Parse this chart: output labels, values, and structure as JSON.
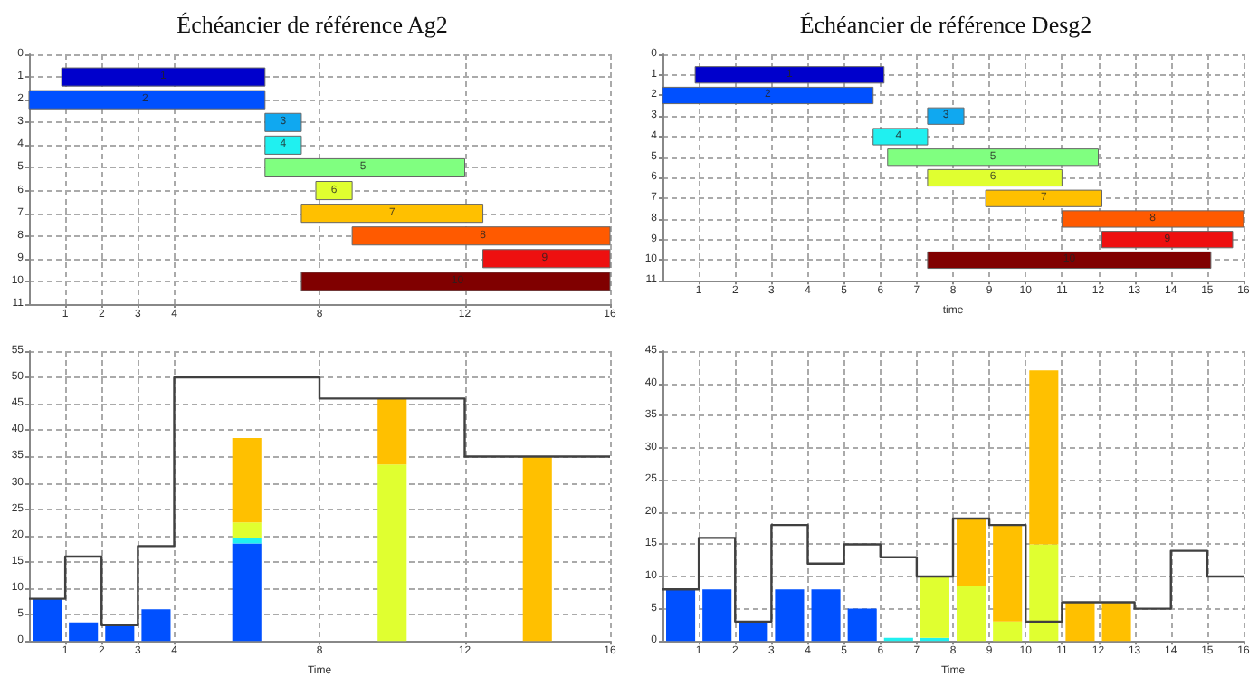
{
  "chart_data": [
    {
      "type": "bar",
      "orientation": "horizontal",
      "title": "Échéancier de référence Ag2",
      "categories": [
        "0",
        "1",
        "2",
        "3",
        "4",
        "5",
        "6",
        "7",
        "8",
        "9",
        "10",
        "11"
      ],
      "values": [
        null,
        5.6,
        6.5,
        1,
        1,
        5.5,
        1,
        5,
        7.1,
        3.5,
        8.5,
        null
      ],
      "base": [
        null,
        0.9,
        0,
        6.5,
        6.5,
        6.5,
        7.9,
        7.5,
        8.9,
        12.5,
        7.5,
        null
      ],
      "colors": [
        null,
        "#0000cc",
        "#0050ff",
        "#10a8f0",
        "#20f0f0",
        "#80ff80",
        "#e0ff30",
        "#ffc000",
        "#ff5a00",
        "#ee1010",
        "#800000",
        null
      ],
      "annotations": [
        {
          "text": "1",
          "x": 3.7,
          "y": "1"
        },
        {
          "text": "2",
          "x": 3.2,
          "y": "2"
        },
        {
          "text": "3",
          "x": 7,
          "y": "3"
        },
        {
          "text": "4",
          "x": 7,
          "y": "4"
        },
        {
          "text": "5",
          "x": 9.2,
          "y": "5"
        },
        {
          "text": "6",
          "x": 8.4,
          "y": "6"
        },
        {
          "text": "7",
          "x": 10,
          "y": "7"
        },
        {
          "text": "8",
          "x": 12.5,
          "y": "8"
        },
        {
          "text": "9",
          "x": 14.2,
          "y": "9"
        },
        {
          "text": "10",
          "x": 11.8,
          "y": "10"
        }
      ],
      "xlim": [
        0,
        16
      ],
      "xticks": [
        1,
        2,
        3,
        4,
        8,
        12,
        16
      ],
      "grid": true
    },
    {
      "type": "bar",
      "orientation": "horizontal",
      "title": "Échéancier de référence Desg2",
      "xlabel": "time",
      "categories": [
        "0",
        "1",
        "2",
        "3",
        "4",
        "5",
        "6",
        "7",
        "8",
        "9",
        "10",
        "11"
      ],
      "values": [
        null,
        5.2,
        5.8,
        1,
        1.5,
        5.8,
        3.7,
        3.2,
        5,
        3.6,
        7.8,
        null
      ],
      "base": [
        null,
        0.9,
        0,
        7.3,
        5.8,
        6.2,
        7.3,
        8.9,
        11,
        12.1,
        7.3,
        null
      ],
      "colors": [
        null,
        "#0000cc",
        "#0050ff",
        "#10a8f0",
        "#20f0f0",
        "#80ff80",
        "#e0ff30",
        "#ffc000",
        "#ff5a00",
        "#ee1010",
        "#800000",
        null
      ],
      "annotations": [
        {
          "text": "1",
          "x": 3.5,
          "y": "1"
        },
        {
          "text": "2",
          "x": 2.9,
          "y": "2"
        },
        {
          "text": "3",
          "x": 7.8,
          "y": "3"
        },
        {
          "text": "4",
          "x": 6.5,
          "y": "4"
        },
        {
          "text": "5",
          "x": 9.1,
          "y": "5"
        },
        {
          "text": "6",
          "x": 9.1,
          "y": "6"
        },
        {
          "text": "7",
          "x": 10.5,
          "y": "7"
        },
        {
          "text": "8",
          "x": 13.5,
          "y": "8"
        },
        {
          "text": "9",
          "x": 13.9,
          "y": "9"
        },
        {
          "text": "10",
          "x": 11.2,
          "y": "10"
        }
      ],
      "xlim": [
        0,
        16
      ],
      "xticks": [
        1,
        2,
        3,
        4,
        5,
        6,
        7,
        8,
        9,
        10,
        11,
        12,
        13,
        14,
        15,
        16
      ],
      "grid": true
    },
    {
      "type": "bar",
      "stacked": true,
      "xlabel": "Time",
      "x": [
        0.5,
        1.5,
        2.5,
        3.5,
        6,
        10,
        14
      ],
      "series": [
        {
          "color": "#0050ff",
          "values": [
            8,
            3.5,
            3,
            6,
            18.5,
            null,
            null
          ]
        },
        {
          "color": "#20f0f0",
          "values": [
            null,
            null,
            null,
            null,
            1,
            null,
            null
          ]
        },
        {
          "color": "#e0ff30",
          "values": [
            null,
            null,
            null,
            null,
            3,
            33.5,
            null
          ]
        },
        {
          "color": "#ffc000",
          "values": [
            null,
            null,
            null,
            null,
            16,
            12.5,
            35
          ]
        },
        {
          "type": "step",
          "color": "#404040",
          "x": [
            0,
            1,
            2,
            3,
            4,
            8,
            12,
            16
          ],
          "values": [
            8,
            16,
            3,
            18,
            50,
            46,
            35,
            35
          ]
        }
      ],
      "xlim": [
        0,
        16
      ],
      "xticks": [
        1,
        2,
        3,
        4,
        8,
        12,
        16
      ],
      "ylim": [
        0,
        55
      ],
      "yticks": [
        0,
        5,
        10,
        15,
        20,
        25,
        30,
        35,
        40,
        45,
        50,
        55
      ],
      "grid": true
    },
    {
      "type": "bar",
      "stacked": true,
      "xlabel": "Time",
      "x": [
        0.5,
        1.5,
        2.5,
        3.5,
        4.5,
        5.5,
        6.5,
        7.5,
        8.5,
        9.5,
        10.5,
        11.5,
        12.5
      ],
      "series": [
        {
          "color": "#0050ff",
          "values": [
            8,
            8,
            3,
            8,
            8,
            5,
            null,
            null,
            null,
            null,
            null,
            null,
            null
          ]
        },
        {
          "color": "#20f0f0",
          "values": [
            null,
            null,
            null,
            null,
            null,
            null,
            0.5,
            0.5,
            null,
            null,
            null,
            null,
            null
          ]
        },
        {
          "color": "#e0ff30",
          "values": [
            null,
            null,
            null,
            null,
            null,
            null,
            null,
            9.5,
            8.5,
            3,
            15,
            null,
            null
          ]
        },
        {
          "color": "#ffc000",
          "values": [
            null,
            null,
            null,
            null,
            null,
            null,
            null,
            null,
            10.5,
            15,
            27,
            6,
            6
          ]
        },
        {
          "type": "step",
          "color": "#404040",
          "x": [
            0,
            1,
            2,
            3,
            4,
            5,
            6,
            7,
            8,
            9,
            10,
            11,
            12,
            13,
            14,
            15,
            16
          ],
          "values": [
            8,
            16,
            3,
            18,
            12,
            15,
            13,
            10,
            19,
            18,
            3,
            6,
            6,
            5,
            14,
            10,
            10
          ]
        }
      ],
      "xlim": [
        0,
        16
      ],
      "xticks": [
        1,
        2,
        3,
        4,
        5,
        6,
        7,
        8,
        9,
        10,
        11,
        12,
        13,
        14,
        15,
        16
      ],
      "ylim": [
        0,
        45
      ],
      "yticks": [
        0,
        5,
        10,
        15,
        20,
        25,
        30,
        35,
        40,
        45
      ],
      "grid": true
    }
  ]
}
